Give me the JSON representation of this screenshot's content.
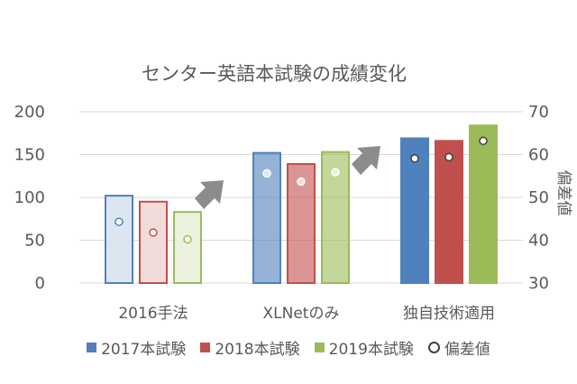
{
  "chart_data": {
    "type": "bar",
    "title": "センター英語本試験の成績変化",
    "categories": [
      "2016手法",
      "XLNetのみ",
      "独自技術適用"
    ],
    "y_axis": {
      "ticks": [
        0,
        50,
        100,
        150,
        200
      ],
      "ylim": [
        0,
        200
      ]
    },
    "y2_axis": {
      "label": "偏差値",
      "ticks": [
        30,
        40,
        50,
        60,
        70
      ],
      "ylim": [
        30,
        70
      ]
    },
    "series": [
      {
        "name": "2017本試験",
        "values": [
          102,
          152,
          169
        ],
        "color": "#4f81bd",
        "light_color": "#dce6f1"
      },
      {
        "name": "2018本試験",
        "values": [
          95,
          139,
          166
        ],
        "color": "#c0504d",
        "light_color": "#f2dcdb"
      },
      {
        "name": "2019本試験",
        "values": [
          83,
          153,
          184
        ],
        "color": "#9bbb59",
        "light_color": "#ebf1de"
      }
    ],
    "deviation": {
      "name": "偏差値",
      "values": [
        [
          44.3,
          41.8,
          40.2
        ],
        [
          55.6,
          53.7,
          55.9
        ],
        [
          59.1,
          59.4,
          63.2
        ]
      ]
    },
    "legend_position": "bottom",
    "grid": true
  }
}
